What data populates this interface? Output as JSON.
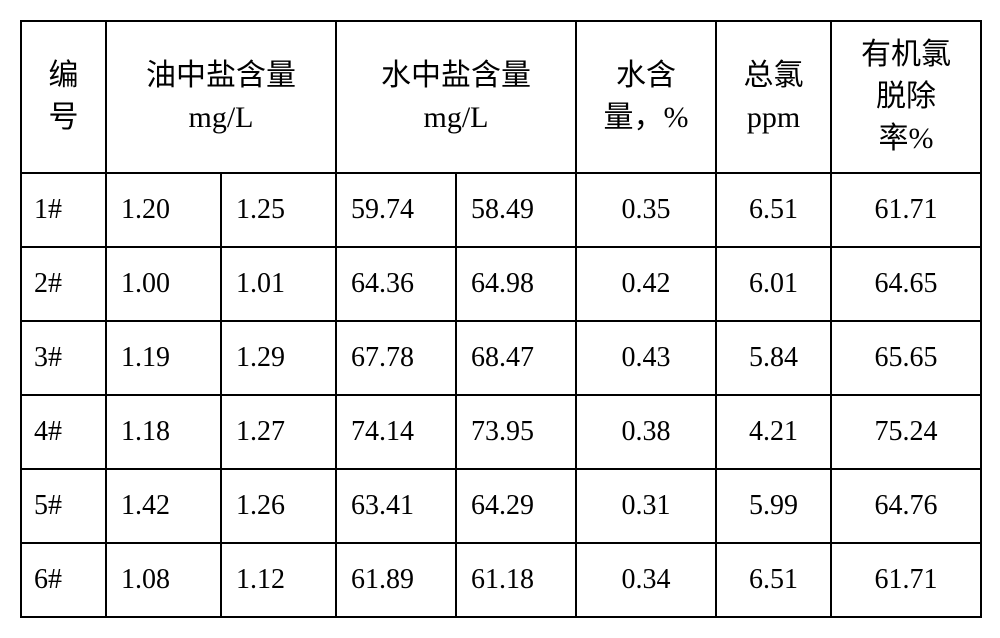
{
  "table": {
    "headers": {
      "id": "编\n号",
      "oil_salt": "油中盐含量\nmg/L",
      "water_salt": "水中盐含量\nmg/L",
      "water_content": "水含\n量，%",
      "total_cl": "总氯\nppm",
      "removal_rate": "有机氯\n脱除\n率%"
    },
    "rows": [
      {
        "id": "1#",
        "oil1": "1.20",
        "oil2": "1.25",
        "w1": "59.74",
        "w2": "58.49",
        "wc": "0.35",
        "tc": "6.51",
        "rr": "61.71"
      },
      {
        "id": "2#",
        "oil1": "1.00",
        "oil2": "1.01",
        "w1": "64.36",
        "w2": "64.98",
        "wc": "0.42",
        "tc": "6.01",
        "rr": "64.65"
      },
      {
        "id": "3#",
        "oil1": "1.19",
        "oil2": "1.29",
        "w1": "67.78",
        "w2": "68.47",
        "wc": "0.43",
        "tc": "5.84",
        "rr": "65.65"
      },
      {
        "id": "4#",
        "oil1": "1.18",
        "oil2": "1.27",
        "w1": "74.14",
        "w2": "73.95",
        "wc": "0.38",
        "tc": "4.21",
        "rr": "75.24"
      },
      {
        "id": "5#",
        "oil1": "1.42",
        "oil2": "1.26",
        "w1": "63.41",
        "w2": "64.29",
        "wc": "0.31",
        "tc": "5.99",
        "rr": "64.76"
      },
      {
        "id": "6#",
        "oil1": "1.08",
        "oil2": "1.12",
        "w1": "61.89",
        "w2": "61.18",
        "wc": "0.34",
        "tc": "6.51",
        "rr": "61.71"
      }
    ],
    "text_color": "#000000",
    "border_color": "#000000",
    "background_color": "#ffffff"
  }
}
